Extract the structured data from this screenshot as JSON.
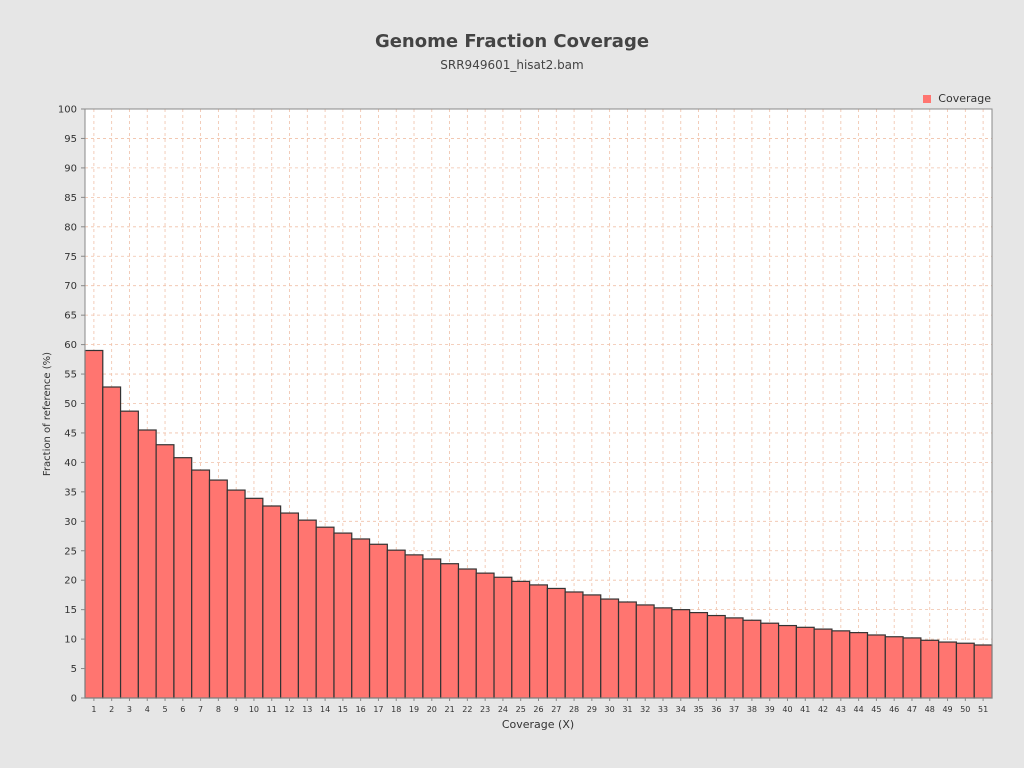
{
  "chart_data": {
    "type": "bar",
    "title": "Genome Fraction Coverage",
    "subtitle": "SRR949601_hisat2.bam",
    "xlabel": "Coverage (X)",
    "ylabel": "Fraction of reference (%)",
    "ylim": [
      0,
      100
    ],
    "yticks": [
      0,
      5,
      10,
      15,
      20,
      25,
      30,
      35,
      40,
      45,
      50,
      55,
      60,
      65,
      70,
      75,
      80,
      85,
      90,
      95,
      100
    ],
    "grid": true,
    "legend_position": "top-right",
    "series": [
      {
        "name": "Coverage",
        "color": "#ff7570",
        "values": [
          59.0,
          52.8,
          48.7,
          45.5,
          43.0,
          40.8,
          38.7,
          37.0,
          35.3,
          33.9,
          32.6,
          31.4,
          30.2,
          29.0,
          28.0,
          27.0,
          26.1,
          25.1,
          24.3,
          23.6,
          22.8,
          21.9,
          21.2,
          20.5,
          19.8,
          19.2,
          18.6,
          18.0,
          17.5,
          16.8,
          16.3,
          15.8,
          15.3,
          15.0,
          14.5,
          14.0,
          13.6,
          13.2,
          12.7,
          12.3,
          12.0,
          11.7,
          11.4,
          11.1,
          10.7,
          10.4,
          10.2,
          9.8,
          9.5,
          9.3,
          9.0
        ]
      }
    ],
    "categories": [
      "1",
      "2",
      "3",
      "4",
      "5",
      "6",
      "7",
      "8",
      "9",
      "10",
      "11",
      "12",
      "13",
      "14",
      "15",
      "16",
      "17",
      "18",
      "19",
      "20",
      "21",
      "22",
      "23",
      "24",
      "25",
      "26",
      "27",
      "28",
      "29",
      "30",
      "31",
      "32",
      "33",
      "34",
      "35",
      "36",
      "37",
      "38",
      "39",
      "40",
      "41",
      "42",
      "43",
      "44",
      "45",
      "46",
      "47",
      "48",
      "49",
      "50",
      "51"
    ]
  }
}
